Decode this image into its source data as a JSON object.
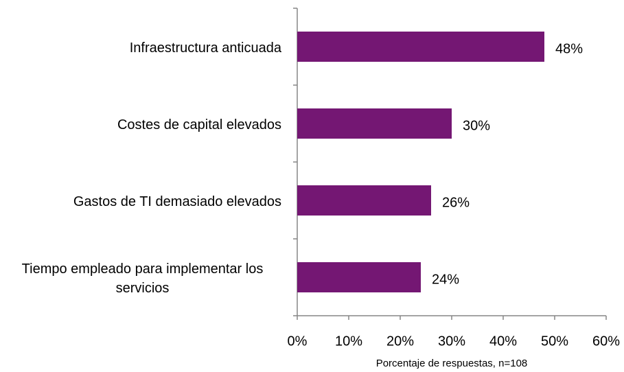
{
  "chart_data": {
    "type": "bar",
    "orientation": "horizontal",
    "categories": [
      "Infraestructura anticuada",
      "Costes de capital elevados",
      "Gastos de TI demasiado elevados",
      "Tiempo empleado para implementar los servicios"
    ],
    "values": [
      48,
      30,
      26,
      24
    ],
    "value_labels": [
      "48%",
      "30%",
      "26%",
      "24%"
    ],
    "color": "#741773",
    "xlim": [
      0,
      60
    ],
    "xticks": [
      {
        "value": 0,
        "label": "0%"
      },
      {
        "value": 10,
        "label": "10%"
      },
      {
        "value": 20,
        "label": "20%"
      },
      {
        "value": 30,
        "label": "30%"
      },
      {
        "value": 40,
        "label": "40%"
      },
      {
        "value": 50,
        "label": "50%"
      },
      {
        "value": 60,
        "label": "60%"
      }
    ],
    "x_label": "Porcentaje de respuestas, n=108",
    "grid": false
  }
}
